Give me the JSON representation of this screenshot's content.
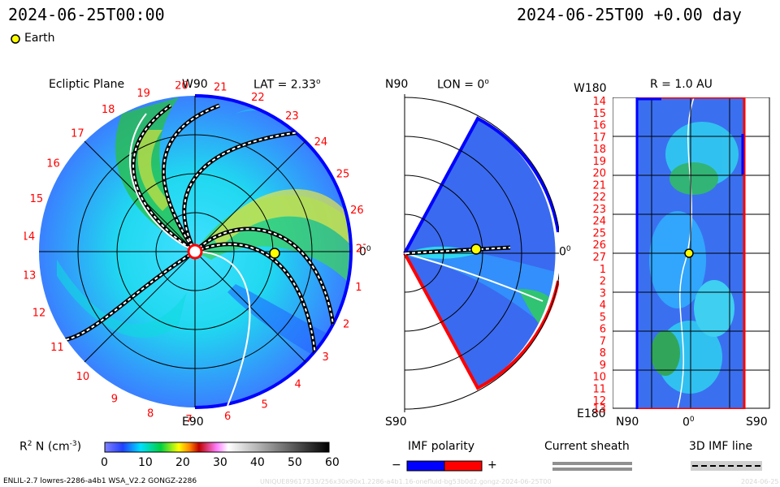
{
  "header": {
    "left_time": "2024-06-25T00:00",
    "right_time": "2024-06-25T00 +0.00 day"
  },
  "legend": {
    "earth_label": "Earth",
    "earth_color": "#ffff00"
  },
  "panels": {
    "ecliptic": {
      "title": "Ecliptic Plane",
      "lat_label": "LAT = 2.33",
      "lat_sup": "o",
      "top_label": "W90",
      "bottom_label": "E90",
      "right_label": "0",
      "right_sup": "0",
      "rotations": [
        "20",
        "21",
        "22",
        "23",
        "24",
        "25",
        "26",
        "27",
        "1",
        "2",
        "3",
        "4",
        "5",
        "6",
        "7",
        "8",
        "9",
        "10",
        "11",
        "12",
        "13",
        "14",
        "15",
        "16",
        "17",
        "18",
        "19"
      ]
    },
    "meridional": {
      "lon_label": "LON = 0",
      "lon_sup": "o",
      "top_label": "N90",
      "bottom_label": "S90",
      "right_label": "0",
      "right_sup": "0"
    },
    "rmap": {
      "title": "R = 1.0 AU",
      "top_left": "W180",
      "bottom_left": "E180",
      "x_left": "N90",
      "x_mid": "0",
      "x_mid_sup": "0",
      "x_right": "S90",
      "y_ticks": [
        "14",
        "15",
        "16",
        "17",
        "18",
        "19",
        "20",
        "21",
        "22",
        "23",
        "24",
        "25",
        "26",
        "27",
        "1",
        "2",
        "3",
        "4",
        "5",
        "6",
        "7",
        "8",
        "9",
        "10",
        "11",
        "12",
        "13"
      ]
    }
  },
  "colorbar": {
    "label_main": "R",
    "label_sup": "2",
    "label_rest": " N (cm",
    "label_exp": "-3",
    "label_end": ")",
    "ticks": [
      "0",
      "10",
      "20",
      "30",
      "40",
      "50",
      "60"
    ]
  },
  "imf": {
    "title": "IMF polarity",
    "minus": "−",
    "plus": "+",
    "neg_color": "#0000ff",
    "pos_color": "#ff0000"
  },
  "sheath": {
    "title": "Current sheath"
  },
  "imfline": {
    "title": "3D IMF line"
  },
  "footer": {
    "model": "ENLIL-2.7 lowres-2286-a4b1 WSA_V2.2 GONGZ-2286",
    "run_id": "UNIQUE89617333/256x30x90x1.2286-a4b1.16-onefluid-bg53b0d2.gongz-2024-06-25T00",
    "date": "2024-06-25"
  },
  "chart_data": {
    "type": "heatmap",
    "variable": "R2 N (cm-3)",
    "colorbar_range": [
      0,
      60
    ],
    "panels": [
      "Ecliptic Plane (LAT = 2.33 deg)",
      "Meridional (LON = 0 deg)",
      "R = 1.0 AU"
    ],
    "earth": {
      "lon_deg": 0,
      "lat_deg": 0,
      "r_au": 1.0
    }
  }
}
